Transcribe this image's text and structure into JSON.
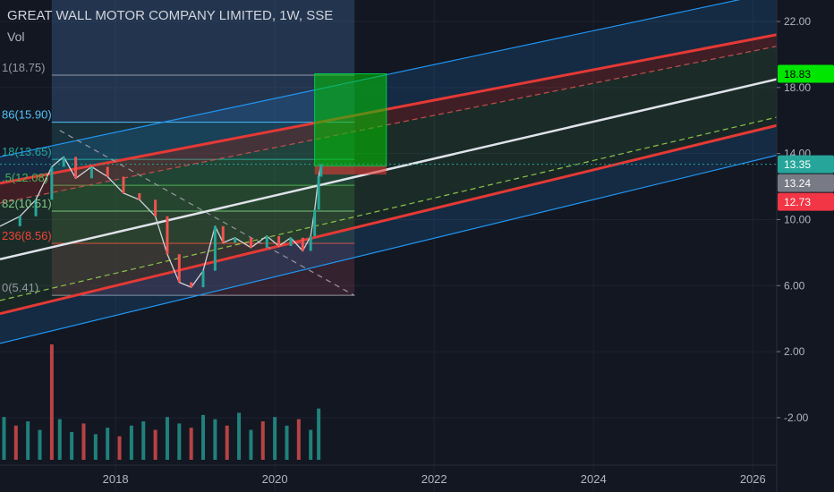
{
  "header": {
    "title": "GREAT WALL MOTOR COMPANY LIMITED, 1W, SSE",
    "volume_label": "Vol"
  },
  "chart_data": {
    "type": "candlestick",
    "title": "GREAT WALL MOTOR COMPANY LIMITED, 1W, SSE",
    "xlabel": "",
    "ylabel": "",
    "x_ticks": [
      "2018",
      "2020",
      "2022",
      "2024",
      "2026"
    ],
    "y_ticks": [
      "22.00",
      "18.00",
      "14.00",
      "10.00",
      "6.00",
      "2.00",
      "-2.00"
    ],
    "y_tick_values": [
      22,
      18,
      14,
      10,
      6,
      2,
      -2
    ],
    "ylim": [
      -6.5,
      23.3
    ],
    "xlim": [
      2016.55,
      2026.3
    ],
    "grid": true,
    "price_labels": [
      {
        "text": "18.83",
        "value": 18.83,
        "color": "#00e600",
        "text_color": "#000000"
      },
      {
        "text": "13.35",
        "value": 13.35,
        "color": "#26a69a",
        "text_color": "#ffffff"
      },
      {
        "text": "13.24",
        "value": 13.24,
        "color": "#787b86",
        "text_color": "#ffffff"
      },
      {
        "text": "12.73",
        "value": 12.73,
        "color": "#f23645",
        "text_color": "#ffffff"
      }
    ],
    "fib_levels": [
      {
        "text": "1(18.75)",
        "value": 18.75,
        "color": "#9598a1"
      },
      {
        "text": "86(15.90)",
        "value": 15.9,
        "color": "#4fc3f7"
      },
      {
        "text": "18(13.65)",
        "value": 13.65,
        "color": "#26a69a"
      },
      {
        "text": ".5(12.08)",
        "value": 12.08,
        "color": "#4caf50"
      },
      {
        "text": "82(10.51)",
        "value": 10.51,
        "color": "#81c784"
      },
      {
        "text": "236(8.56)",
        "value": 8.56,
        "color": "#f44336"
      },
      {
        "text": "0(5.41)",
        "value": 5.41,
        "color": "#9598a1"
      }
    ],
    "fib_range": {
      "x_start": 2017.2,
      "x_end": 2021.0
    },
    "regression_channel": {
      "x_start": 2016.55,
      "x_end": 2026.3,
      "center": [
        7.6,
        18.5
      ],
      "inner_upper": [
        12.2,
        21.2
      ],
      "inner_lower": [
        4.3,
        15.7
      ],
      "dashed_upper": [
        11.0,
        20.5
      ],
      "dashed_lower": [
        5.1,
        16.2
      ],
      "outer_upper": [
        13.8,
        23.8
      ],
      "outer_lower": [
        2.5,
        13.9
      ]
    },
    "long_position": {
      "x_start": 2020.5,
      "x_end": 2021.4,
      "entry": 13.24,
      "target": 18.83,
      "stop": 12.73
    },
    "dashed_trend": {
      "x": [
        2017.3,
        2021.0
      ],
      "y": [
        15.4,
        5.4
      ]
    },
    "price_series": {
      "x": [
        2016.55,
        2016.8,
        2017.0,
        2017.2,
        2017.35,
        2017.5,
        2017.7,
        2017.9,
        2018.1,
        2018.3,
        2018.5,
        2018.65,
        2018.8,
        2018.95,
        2019.1,
        2019.25,
        2019.35,
        2019.5,
        2019.7,
        2019.9,
        2020.05,
        2020.2,
        2020.35,
        2020.45,
        2020.5,
        2020.55,
        2020.58
      ],
      "y": [
        9.6,
        10.2,
        11.2,
        13.2,
        13.8,
        12.5,
        13.2,
        12.6,
        11.6,
        11.2,
        10.2,
        7.9,
        6.2,
        5.9,
        6.9,
        9.6,
        8.6,
        8.9,
        8.3,
        9.0,
        8.4,
        8.9,
        8.1,
        9.0,
        10.6,
        12.6,
        13.35
      ]
    },
    "volume_series": {
      "x": [
        2016.6,
        2016.75,
        2016.9,
        2017.05,
        2017.2,
        2017.3,
        2017.45,
        2017.6,
        2017.75,
        2017.9,
        2018.05,
        2018.2,
        2018.35,
        2018.5,
        2018.65,
        2018.8,
        2018.95,
        2019.1,
        2019.25,
        2019.4,
        2019.55,
        2019.7,
        2019.85,
        2020.0,
        2020.15,
        2020.3,
        2020.45,
        2020.55
      ],
      "values": [
        2.0,
        1.6,
        1.8,
        1.4,
        5.4,
        1.9,
        1.3,
        1.7,
        1.2,
        1.5,
        1.1,
        1.6,
        1.8,
        1.4,
        2.0,
        1.7,
        1.5,
        2.1,
        1.9,
        1.6,
        2.2,
        1.4,
        1.8,
        2.0,
        1.6,
        1.9,
        1.4,
        2.4
      ],
      "max_volume": 5.4
    },
    "colors": {
      "background": "#131722",
      "up": "#26a69a",
      "down": "#ef5350",
      "channel_center": "#e0e3eb",
      "channel_red": "#e53935",
      "channel_blue": "#2196f3"
    }
  }
}
